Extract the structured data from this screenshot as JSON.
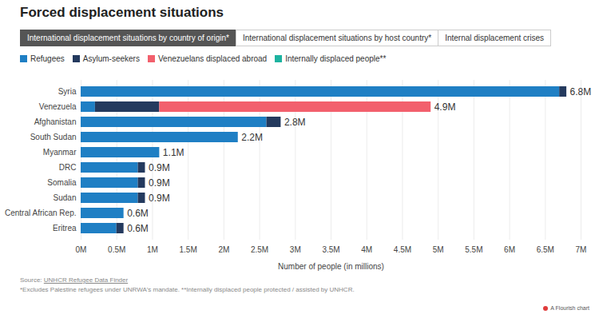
{
  "chart_data": {
    "type": "bar",
    "orientation": "horizontal",
    "stacked": true,
    "title": "Forced displacement situations",
    "tabs": [
      {
        "label": "International displacement situations by country of origin*",
        "active": true
      },
      {
        "label": "International displacement situations by host country*",
        "active": false
      },
      {
        "label": "Internal displacement crises",
        "active": false
      }
    ],
    "categories": [
      "Syria",
      "Venezuela",
      "Afghanistan",
      "South Sudan",
      "Myanmar",
      "DRC",
      "Somalia",
      "Sudan",
      "Central African Rep.",
      "Eritrea"
    ],
    "series": [
      {
        "name": "Refugees",
        "color": "#1f7fc4",
        "values": [
          6.7,
          0.2,
          2.6,
          2.2,
          1.1,
          0.8,
          0.8,
          0.8,
          0.6,
          0.5
        ]
      },
      {
        "name": "Asylum-seekers",
        "color": "#243a5e",
        "values": [
          0.1,
          0.9,
          0.2,
          0,
          0,
          0.1,
          0.1,
          0.1,
          0,
          0.1
        ]
      },
      {
        "name": "Venezuelans displaced abroad",
        "color": "#f2606d",
        "values": [
          0,
          3.8,
          0,
          0,
          0,
          0,
          0,
          0,
          0,
          0
        ]
      },
      {
        "name": "Internally displaced people**",
        "color": "#1db3a0",
        "values": [
          0,
          0,
          0,
          0,
          0,
          0,
          0,
          0,
          0,
          0
        ]
      }
    ],
    "totals": [
      6.8,
      4.9,
      2.8,
      2.2,
      1.1,
      0.9,
      0.9,
      0.9,
      0.6,
      0.6
    ],
    "value_labels": [
      "6.8M",
      "4.9M",
      "2.8M",
      "2.2M",
      "1.1M",
      "0.9M",
      "0.9M",
      "0.9M",
      "0.6M",
      "0.6M"
    ],
    "data_labels": true,
    "xlabel": "Number of people (in millions)",
    "xlim": [
      0,
      7
    ],
    "xticks": [
      {
        "value": 0,
        "label": "0M"
      },
      {
        "value": 0.5,
        "label": "0.5M"
      },
      {
        "value": 1,
        "label": "1M"
      },
      {
        "value": 1.5,
        "label": "1.5M"
      },
      {
        "value": 2,
        "label": "2M"
      },
      {
        "value": 2.5,
        "label": "2.5M"
      },
      {
        "value": 3,
        "label": "3M"
      },
      {
        "value": 3.5,
        "label": "3.5M"
      },
      {
        "value": 4,
        "label": "4M"
      },
      {
        "value": 4.5,
        "label": "4.5M"
      },
      {
        "value": 5,
        "label": "5M"
      },
      {
        "value": 5.5,
        "label": "5.5M"
      },
      {
        "value": 6,
        "label": "6M"
      },
      {
        "value": 6.5,
        "label": "6.5M"
      },
      {
        "value": 7,
        "label": "7M"
      }
    ],
    "grid": true,
    "legend": "top",
    "source_label": "Source:",
    "source": "UNHCR Refugee Data Finder",
    "note": "*Excludes Palestine refugees under UNRWA's mandate. **Internally displaced people protected / assisted by UNHCR.",
    "credit": "A Flourish chart"
  }
}
